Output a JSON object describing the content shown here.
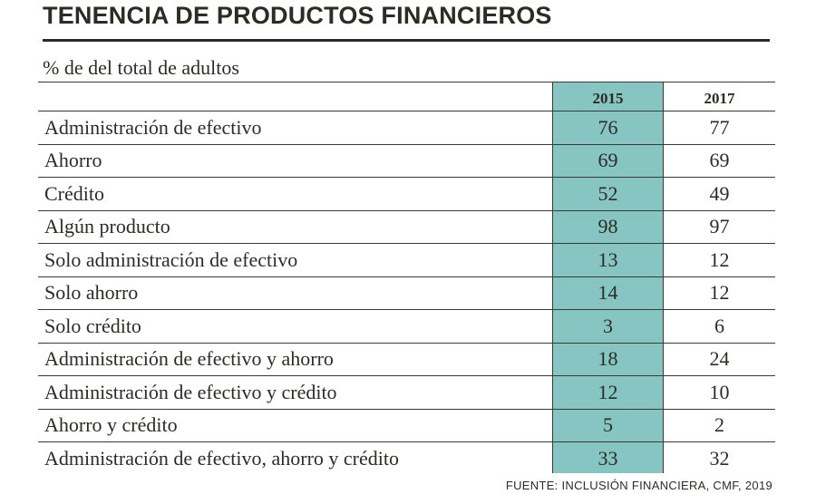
{
  "chart_data": {
    "type": "table",
    "title": "TENENCIA DE PRODUCTOS FINANCIEROS",
    "subtitle": "% de del total de adultos",
    "columns": [
      "2015",
      "2017"
    ],
    "highlight_color": "#86c5c2",
    "rows": [
      {
        "label": "Administración de efectivo",
        "values": [
          "76",
          "77"
        ]
      },
      {
        "label": "Ahorro",
        "values": [
          "69",
          "69"
        ]
      },
      {
        "label": "Crédito",
        "values": [
          "52",
          "49"
        ]
      },
      {
        "label": "Algún producto",
        "values": [
          "98",
          "97"
        ]
      },
      {
        "label": "Solo administración de efectivo",
        "values": [
          "13",
          "12"
        ]
      },
      {
        "label": "Solo ahorro",
        "values": [
          "14",
          "12"
        ]
      },
      {
        "label": "Solo crédito",
        "values": [
          "3",
          "6"
        ]
      },
      {
        "label": "Administración de efectivo y ahorro",
        "values": [
          "18",
          "24"
        ]
      },
      {
        "label": "Administración de efectivo y crédito",
        "values": [
          "12",
          "10"
        ]
      },
      {
        "label": "Ahorro y crédito",
        "values": [
          "5",
          "2"
        ]
      },
      {
        "label": "Administración de efectivo, ahorro y crédito",
        "values": [
          "33",
          "32"
        ]
      }
    ],
    "source": "FUENTE: INCLUSIÓN FINANCIERA, CMF, 2019"
  }
}
